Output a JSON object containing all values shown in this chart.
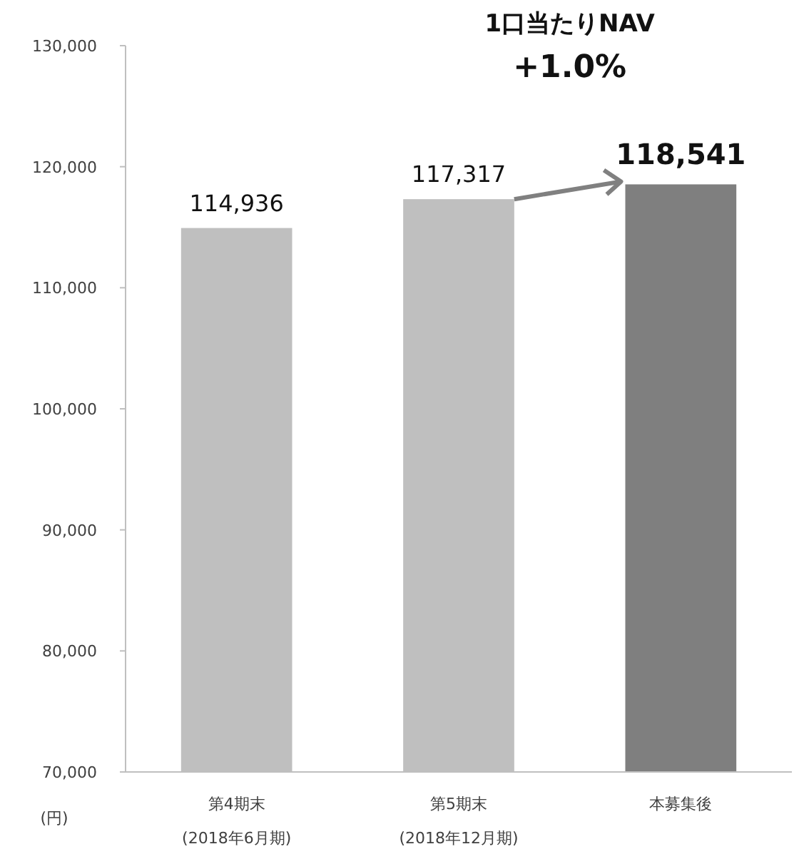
{
  "chart_data": {
    "type": "bar",
    "ylabel": "(円)",
    "categories": [
      "第4期末\n(2018年6月期)",
      "第5期末\n(2018年12月期)",
      "本募集後"
    ],
    "values": [
      114936,
      117317,
      118541
    ],
    "value_labels": [
      "114,936",
      "117,317",
      "118,541"
    ],
    "colors": [
      "#bfbfbf",
      "#bfbfbf",
      "#7f7f7f"
    ],
    "ylim": [
      70000,
      130000
    ],
    "yticks": [
      {
        "value": 70000,
        "label": "70,000"
      },
      {
        "value": 80000,
        "label": "80,000"
      },
      {
        "value": 90000,
        "label": "90,000"
      },
      {
        "value": 100000,
        "label": "100,000"
      },
      {
        "value": 110000,
        "label": "110,000"
      },
      {
        "value": 120000,
        "label": "120,000"
      },
      {
        "value": 130000,
        "label": "130,000"
      }
    ],
    "grid": false,
    "annotations": [
      "1口当たりNAV",
      "+1.0%"
    ]
  }
}
